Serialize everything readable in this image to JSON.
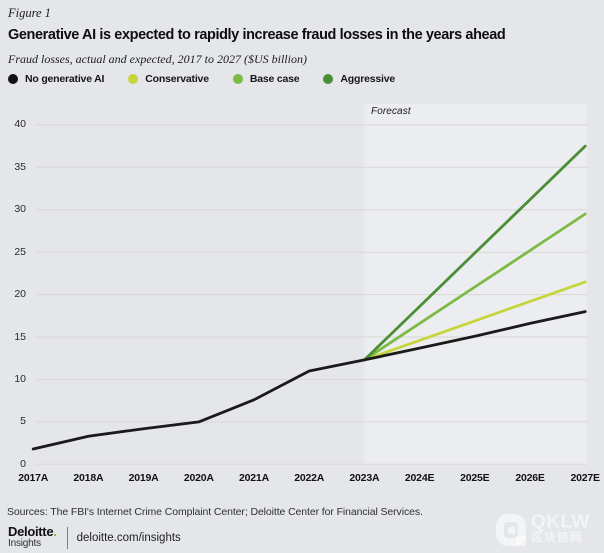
{
  "figure_label": "Figure 1",
  "chart_data": {
    "type": "line",
    "title": "Generative AI is expected to rapidly increase fraud losses in the years ahead",
    "subtitle": "Fraud losses, actual and expected, 2017 to 2027 ($US billion)",
    "forecast_label": "Forecast",
    "forecast_start": "2023A",
    "x_labels": [
      "2017A",
      "2018A",
      "2019A",
      "2020A",
      "2021A",
      "2022A",
      "2023A",
      "2024E",
      "2025E",
      "2026E",
      "2027E"
    ],
    "y_ticks": [
      0,
      5,
      10,
      15,
      20,
      25,
      30,
      35,
      40
    ],
    "ylim": [
      0,
      40
    ],
    "grid": "horizontal",
    "legend_position": "top",
    "series": [
      {
        "name": "Conservative",
        "color": "#c7d53d",
        "x_start_index": 6,
        "values": [
          12.3,
          14.6,
          16.9,
          19.2,
          21.5
        ]
      },
      {
        "name": "Base case",
        "color": "#7cba43",
        "x_start_index": 6,
        "values": [
          12.3,
          16.6,
          20.9,
          25.2,
          29.5
        ]
      },
      {
        "name": "Aggressive",
        "color": "#4b8e36",
        "x_start_index": 6,
        "values": [
          12.3,
          18.6,
          24.9,
          31.2,
          37.5
        ]
      },
      {
        "name": "No generative AI",
        "color": "#1a1a1a",
        "x_start_index": 0,
        "values": [
          1.8,
          3.3,
          4.2,
          5.0,
          7.6,
          11.0,
          12.3,
          13.7,
          15.1,
          16.6,
          18.0
        ]
      }
    ]
  },
  "legend": [
    {
      "label": "No generative AI",
      "color": "#111111"
    },
    {
      "label": "Conservative",
      "color": "#c7d53d"
    },
    {
      "label": "Base case",
      "color": "#7cba43"
    },
    {
      "label": "Aggressive",
      "color": "#4b8e36"
    }
  ],
  "sources": "Sources: The FBI's Internet Crime Complaint Center; Deloitte Center for Financial Services.",
  "footer": {
    "brand": "Deloitte",
    "brand_dot": ".",
    "brand_sub": "Insights",
    "link": "deloitte.com/insights"
  },
  "watermark": {
    "text": "QKLW",
    "subtext": "区块链网"
  },
  "colors": {
    "page_background": "#e4e6ea",
    "forecast_band": "#ecedf0",
    "gridline": "#d9d8d3",
    "deloitte_green": "#86bc25"
  }
}
